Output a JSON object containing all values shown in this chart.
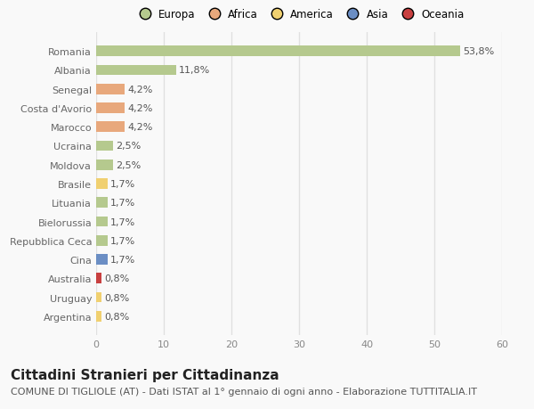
{
  "categories": [
    "Romania",
    "Albania",
    "Senegal",
    "Costa d'Avorio",
    "Marocco",
    "Ucraina",
    "Moldova",
    "Brasile",
    "Lituania",
    "Bielorussia",
    "Repubblica Ceca",
    "Cina",
    "Australia",
    "Uruguay",
    "Argentina"
  ],
  "values": [
    53.8,
    11.8,
    4.2,
    4.2,
    4.2,
    2.5,
    2.5,
    1.7,
    1.7,
    1.7,
    1.7,
    1.7,
    0.8,
    0.8,
    0.8
  ],
  "labels": [
    "53,8%",
    "11,8%",
    "4,2%",
    "4,2%",
    "4,2%",
    "2,5%",
    "2,5%",
    "1,7%",
    "1,7%",
    "1,7%",
    "1,7%",
    "1,7%",
    "0,8%",
    "0,8%",
    "0,8%"
  ],
  "colors": [
    "#b5c98e",
    "#b5c98e",
    "#e8a87c",
    "#e8a87c",
    "#e8a87c",
    "#b5c98e",
    "#b5c98e",
    "#f0d070",
    "#b5c98e",
    "#b5c98e",
    "#b5c98e",
    "#6b8ec4",
    "#c84040",
    "#f0d070",
    "#f0d070"
  ],
  "continent_colors": {
    "Europa": "#b5c98e",
    "Africa": "#e8a87c",
    "America": "#f0d070",
    "Asia": "#6b8ec4",
    "Oceania": "#c84040"
  },
  "xlim": [
    0,
    60
  ],
  "xticks": [
    0,
    10,
    20,
    30,
    40,
    50,
    60
  ],
  "title": "Cittadini Stranieri per Cittadinanza",
  "subtitle": "COMUNE DI TIGLIOLE (AT) - Dati ISTAT al 1° gennaio di ogni anno - Elaborazione TUTTITALIA.IT",
  "background_color": "#f9f9f9",
  "grid_color": "#e0e0e0",
  "bar_height": 0.55,
  "title_fontsize": 11,
  "subtitle_fontsize": 8,
  "label_fontsize": 8,
  "tick_fontsize": 8
}
